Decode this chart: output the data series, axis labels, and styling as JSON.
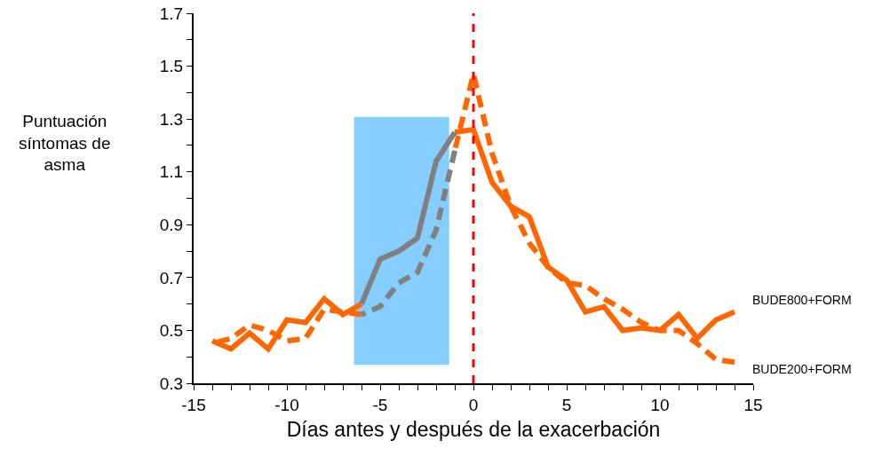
{
  "chart_data": {
    "type": "line",
    "xlabel": "Días antes y después de la exacerbación",
    "ylabel": "Puntuación\nsíntomas de\nasma",
    "xlim": [
      -15,
      15
    ],
    "ylim": [
      0.3,
      1.7
    ],
    "xticks": [
      -15,
      {
        "value": -14,
        "label": null
      },
      {
        "value": -13,
        "label": null
      },
      {
        "value": -12,
        "label": null
      },
      {
        "value": -11,
        "label": null
      },
      -10,
      {
        "value": -9,
        "label": null
      },
      {
        "value": -8,
        "label": null
      },
      {
        "value": -7,
        "label": null
      },
      {
        "value": -6,
        "label": null
      },
      -5,
      {
        "value": -4,
        "label": null
      },
      {
        "value": -3,
        "label": null
      },
      {
        "value": -2,
        "label": null
      },
      {
        "value": -1,
        "label": null
      },
      0,
      {
        "value": 1,
        "label": null
      },
      {
        "value": 2,
        "label": null
      },
      {
        "value": 3,
        "label": null
      },
      {
        "value": 4,
        "label": null
      },
      5,
      {
        "value": 6,
        "label": null
      },
      {
        "value": 7,
        "label": null
      },
      {
        "value": 8,
        "label": null
      },
      {
        "value": 9,
        "label": null
      },
      10,
      {
        "value": 11,
        "label": null
      },
      {
        "value": 12,
        "label": null
      },
      {
        "value": 13,
        "label": null
      },
      {
        "value": 14,
        "label": null
      },
      15
    ],
    "yticks": [
      0.3,
      {
        "value": 0.4,
        "label": null
      },
      0.5,
      {
        "value": 0.6,
        "label": null
      },
      0.7,
      {
        "value": 0.8,
        "label": null
      },
      0.9,
      {
        "value": 1.0,
        "label": null
      },
      1.1,
      {
        "value": 1.2,
        "label": null
      },
      1.3,
      {
        "value": 1.4,
        "label": null
      },
      1.5,
      {
        "value": 1.6,
        "label": null
      },
      1.7
    ],
    "x": [
      -14,
      -13,
      -12,
      -11,
      -10,
      -9,
      -8,
      -7,
      -6,
      -5,
      -4,
      -3,
      -2,
      -1,
      0,
      1,
      2,
      3,
      4,
      5,
      6,
      7,
      8,
      9,
      10,
      11,
      12,
      13,
      14
    ],
    "series": [
      {
        "name": "BUDE800+FORM",
        "color": "#ff6600",
        "line_style": "solid",
        "values": [
          0.46,
          0.43,
          0.49,
          0.43,
          0.54,
          0.53,
          0.62,
          0.56,
          0.6,
          null,
          null,
          null,
          null,
          1.25,
          1.26,
          1.06,
          0.97,
          0.93,
          0.74,
          0.69,
          0.57,
          0.59,
          0.5,
          0.51,
          0.5,
          0.56,
          0.47,
          0.54,
          0.57
        ]
      },
      {
        "name": "BUDE200+FORM",
        "color": "#ff6600",
        "line_style": "dashed",
        "values": [
          0.45,
          0.47,
          0.52,
          0.5,
          0.46,
          0.47,
          0.58,
          0.57,
          0.56,
          null,
          null,
          null,
          null,
          1.18,
          1.47,
          1.17,
          0.97,
          0.83,
          0.74,
          0.68,
          0.67,
          0.62,
          0.58,
          0.53,
          0.5,
          0.5,
          0.45,
          0.39,
          0.38
        ]
      },
      {
        "color": "#808080",
        "line_style": "solid",
        "x": [
          -6,
          -5,
          -4,
          -3,
          -2,
          -1
        ],
        "values": [
          0.6,
          0.77,
          0.8,
          0.85,
          1.14,
          1.25
        ]
      },
      {
        "color": "#808080",
        "line_style": "dashed",
        "x": [
          -6,
          -5,
          -4,
          -3,
          -2,
          -1
        ],
        "values": [
          0.56,
          0.59,
          0.68,
          0.72,
          0.88,
          1.18
        ]
      }
    ],
    "bands": [
      {
        "axis": "x",
        "from": -6.4,
        "to": -1.3,
        "color": "#66c2ff"
      }
    ],
    "ref_lines": [
      {
        "axis": "x",
        "value": 0,
        "color": "#ff0000",
        "line_style": "dashed"
      }
    ],
    "grid": false,
    "legend": false,
    "marker": "none"
  }
}
